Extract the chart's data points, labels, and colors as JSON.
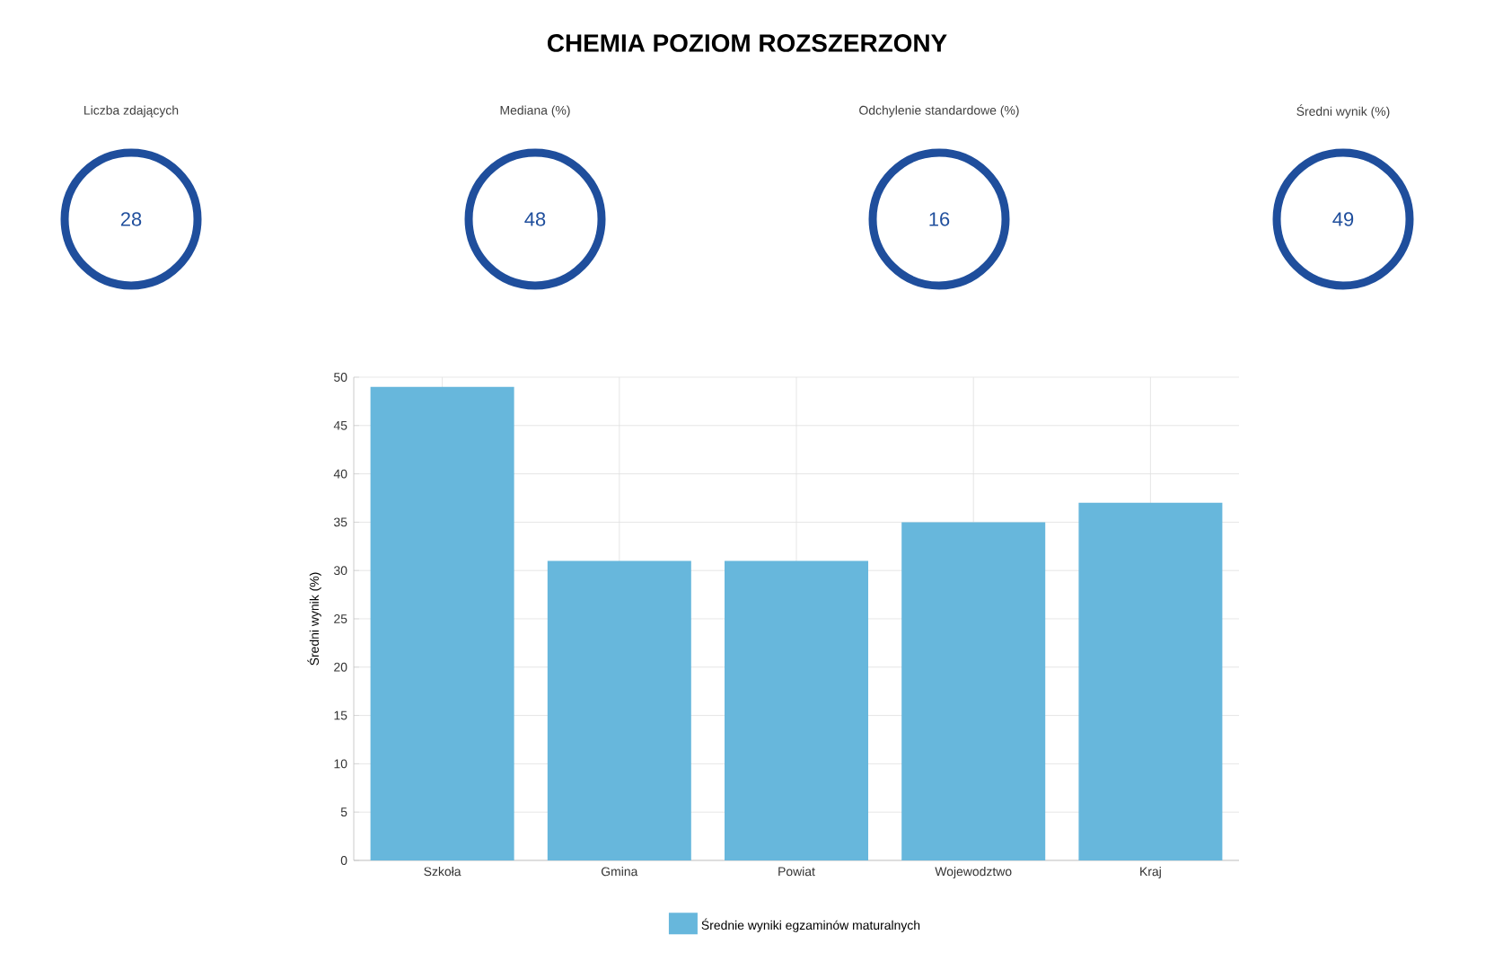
{
  "chart_data": [
    {
      "type": "other",
      "title": "CHEMIA POZIOM ROZSZERZONY",
      "categories": [
        "Liczba zdających",
        "Mediana (%)",
        "Odchylenie standardowe (%)",
        "Średni wynik (%)"
      ],
      "values": [
        28,
        48,
        16,
        49
      ],
      "data_labels": true,
      "color": "#1f4e9c"
    },
    {
      "type": "bar",
      "categories": [
        "Szkoła",
        "Gmina",
        "Powiat",
        "Wojewodztwo",
        "Kraj"
      ],
      "series": [
        {
          "name": "Średnie wyniki egzaminów maturalnych",
          "color": "#67b7dc",
          "values": [
            49,
            31,
            31,
            35,
            37
          ]
        }
      ],
      "ylabel": "Średni wynik (%)",
      "ylim": [
        0,
        50
      ],
      "yticks": [
        0,
        5,
        10,
        15,
        20,
        25,
        30,
        35,
        40,
        45,
        50
      ],
      "grid": true,
      "legend": "bottom"
    }
  ]
}
